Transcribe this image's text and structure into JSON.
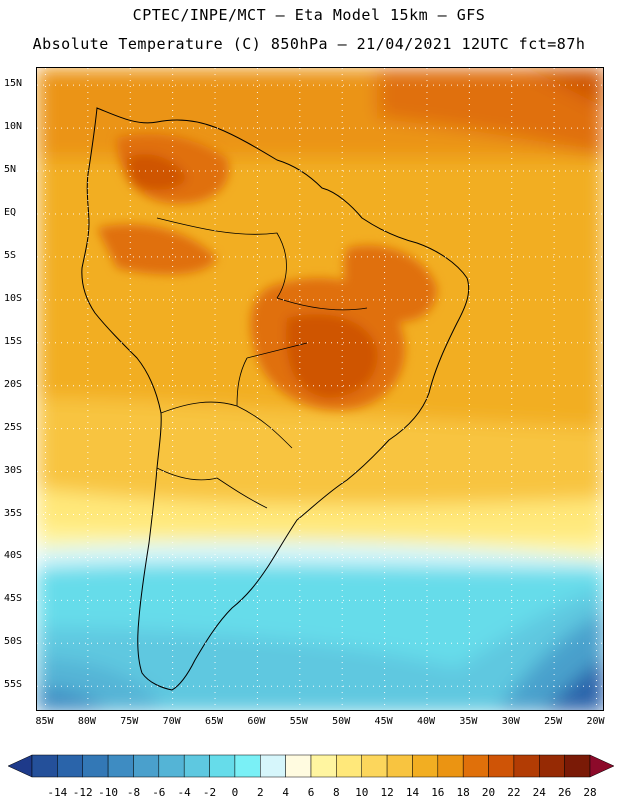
{
  "title_line1": "CPTEC/INPE/MCT –  Eta Model 15km – GFS",
  "title_line2": "Absolute Temperature (C) 850hPa – 21/04/2021 12UTC fct=87h",
  "map": {
    "lon_range": [
      -86,
      -19
    ],
    "lat_range": [
      -58,
      17
    ],
    "lat_labels": [
      "15N",
      "10N",
      "5N",
      "EQ",
      "5S",
      "10S",
      "15S",
      "20S",
      "25S",
      "30S",
      "35S",
      "40S",
      "45S",
      "50S",
      "55S"
    ],
    "lon_labels": [
      "85W",
      "80W",
      "75W",
      "70W",
      "65W",
      "60W",
      "55W",
      "50W",
      "45W",
      "40W",
      "35W",
      "30W",
      "25W",
      "20W"
    ],
    "gridlines": true,
    "gridline_style": "dotted"
  },
  "colorbar": {
    "labels": [
      "-14",
      "-12",
      "-10",
      "-8",
      "-6",
      "-4",
      "-2",
      "0",
      "2",
      "4",
      "6",
      "8",
      "10",
      "12",
      "14",
      "16",
      "18",
      "20",
      "22",
      "24",
      "26",
      "28"
    ],
    "colors": [
      "#1e3a8a",
      "#24509a",
      "#2a64aa",
      "#3378b6",
      "#3e8cc2",
      "#4aa0cc",
      "#54b4d6",
      "#5ec8e0",
      "#66dcea",
      "#7af0f6",
      "#d6f6fb",
      "#fffbe0",
      "#fff5a0",
      "#ffe87a",
      "#fcd65c",
      "#f8c440",
      "#f2ae22",
      "#eb9412",
      "#e0700a",
      "#cf5406",
      "#b23c04",
      "#962a04",
      "#7a1a06",
      "#8c0a2a"
    ]
  }
}
